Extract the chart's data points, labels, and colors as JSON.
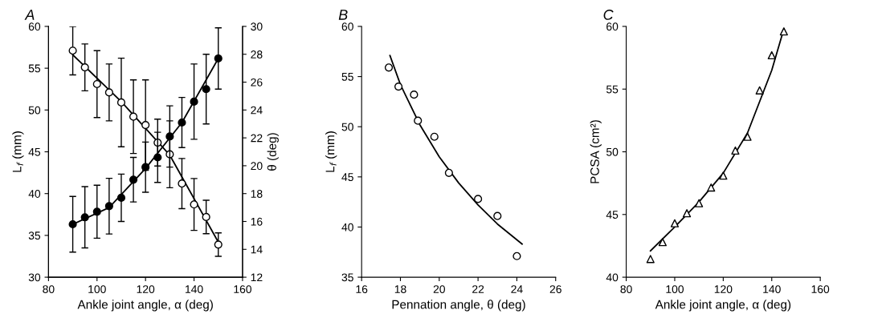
{
  "chart_data": [
    {
      "type": "scatter",
      "title": "A",
      "xlabel": "Ankle joint angle, α (deg)",
      "ylabel": "L$_{f}$ (mm)",
      "y2label": "θ (deg)",
      "x": [
        90,
        95,
        100,
        105,
        110,
        115,
        120,
        125,
        130,
        135,
        140,
        145,
        150
      ],
      "xlim": [
        80,
        160
      ],
      "xticks": [
        80,
        100,
        120,
        140,
        160
      ],
      "ylim": [
        30,
        60
      ],
      "yticks": [
        30,
        35,
        40,
        45,
        50,
        55,
        60
      ],
      "y2lim": [
        12,
        30
      ],
      "y2ticks": [
        12,
        14,
        16,
        18,
        20,
        22,
        24,
        26,
        28,
        30
      ],
      "grid": false,
      "legend": false,
      "series": [
        {
          "marker": "circle",
          "color": "#ffffff",
          "values": [
            57.1,
            55.1,
            53.1,
            52.1,
            50.9,
            49.2,
            48.2,
            46.1,
            44.7,
            41.2,
            38.7,
            37.2,
            33.9
          ],
          "errors": [
            2.9,
            2.8,
            4.0,
            3.4,
            5.3,
            4.4,
            5.4,
            2.8,
            4.0,
            3.0,
            3.1,
            2.0,
            1.4
          ]
        },
        {
          "marker": "circle",
          "color": "#000000",
          "axis": "y2",
          "values": [
            15.8,
            16.3,
            16.7,
            17.1,
            17.7,
            19.0,
            19.9,
            20.6,
            22.1,
            23.1,
            24.6,
            25.5,
            27.7
          ],
          "errors": [
            2.0,
            2.2,
            1.9,
            2.0,
            1.7,
            1.6,
            1.8,
            1.8,
            2.2,
            1.8,
            2.7,
            2.5,
            2.2
          ]
        },
        {
          "type": "line",
          "marker": "none",
          "color": "#000000",
          "x": [
            90,
            110,
            130,
            150
          ],
          "values": [
            56.6,
            51.0,
            44.6,
            34.2
          ]
        },
        {
          "type": "line",
          "marker": "none",
          "color": "#000000",
          "axis": "y2",
          "x": [
            90,
            105,
            120,
            135,
            150
          ],
          "values": [
            15.8,
            17.0,
            19.8,
            23.1,
            27.7
          ]
        }
      ]
    },
    {
      "type": "scatter",
      "title": "B",
      "xlabel": "Pennation angle, θ (deg)",
      "ylabel": "L$_{f}$ (mm)",
      "xlim": [
        16,
        26
      ],
      "xticks": [
        16,
        18,
        20,
        22,
        24,
        26
      ],
      "ylim": [
        35,
        60
      ],
      "yticks": [
        35,
        40,
        45,
        50,
        55,
        60
      ],
      "grid": false,
      "legend": false,
      "series": [
        {
          "marker": "circle",
          "color": "#ffffff",
          "x": [
            17.4,
            17.9,
            18.7,
            18.9,
            19.75,
            20.5,
            22.0,
            23.0,
            24.0
          ],
          "values": [
            55.9,
            54.0,
            53.2,
            50.6,
            49.0,
            45.4,
            42.8,
            41.1,
            37.1
          ]
        },
        {
          "type": "line",
          "marker": "none",
          "color": "#000000",
          "x": [
            17.46,
            18,
            19,
            20,
            21,
            22,
            23,
            24.27
          ],
          "values": [
            57.1,
            54.2,
            50.2,
            47.0,
            44.4,
            42.2,
            40.3,
            38.3
          ]
        }
      ]
    },
    {
      "type": "scatter",
      "title": "C",
      "xlabel": "Ankle joint angle, α (deg)",
      "ylabel": "PCSA (cm²)",
      "xlim": [
        80,
        160
      ],
      "xticks": [
        80,
        100,
        120,
        140,
        160
      ],
      "ylim": [
        40,
        60
      ],
      "yticks": [
        40,
        45,
        50,
        55,
        60
      ],
      "grid": false,
      "legend": false,
      "series": [
        {
          "marker": "triangle",
          "color": "#ffffff",
          "x": [
            90,
            95,
            100,
            105,
            110,
            115,
            120,
            125,
            130,
            135,
            140,
            145
          ],
          "values": [
            41.45,
            42.8,
            44.3,
            45.1,
            45.9,
            47.15,
            48.1,
            50.1,
            51.2,
            54.9,
            57.7,
            59.6
          ]
        },
        {
          "type": "line",
          "marker": "none",
          "color": "#000000",
          "x": [
            90,
            100,
            110,
            120,
            130,
            140,
            145
          ],
          "values": [
            42.1,
            44.0,
            46.0,
            48.3,
            51.5,
            56.5,
            59.8
          ]
        }
      ]
    }
  ]
}
